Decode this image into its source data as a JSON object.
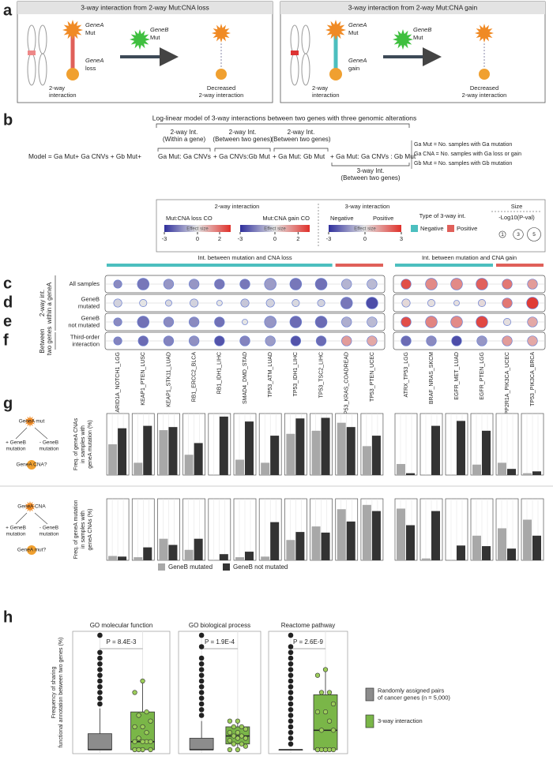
{
  "panel_a": {
    "letter": "a",
    "boxes": [
      {
        "title": "3-way interaction from 2-way Mut:CNA loss",
        "genea": "GeneA",
        "genea_alt": "Mut",
        "geneb": "GeneB",
        "geneb_alt": "Mut",
        "genea_cna": "GeneA",
        "cna": "loss",
        "left_caption": [
          "2-way",
          "interaction"
        ],
        "right_caption": [
          "Decreased",
          "2-way interaction"
        ]
      },
      {
        "title": "3-way interaction from 2-way Mut:CNA gain",
        "genea": "GeneA",
        "genea_alt": "Mut",
        "geneb": "GeneB",
        "geneb_alt": "Mut",
        "genea_cna": "GeneA",
        "cna": "gain",
        "left_caption": [
          "2-way",
          "interaction"
        ],
        "right_caption": [
          "Decreased",
          "2-way interaction"
        ]
      }
    ]
  },
  "panel_b": {
    "letter": "b",
    "title": "Log-linear model of 3-way interactions between two genes with three genomic alterations",
    "brackets": [
      [
        "2-way Int.",
        "(Within a gene)"
      ],
      [
        "2-way Int.",
        "(Between two genes)"
      ],
      [
        "2-way Int.",
        "(Between two genes)"
      ]
    ],
    "formula": [
      "Model = Ga Mut+ Ga CNVs + Gb Mut+",
      "Ga Mut: Ga CNVs",
      "+ Ga CNVs:Gb Mut",
      "+ Ga Mut: Gb Mut",
      "+ Ga Mut: Ga CNVs : Gb Mut"
    ],
    "three_way": [
      "3-way Int.",
      "(Between two genes)"
    ],
    "definitions": [
      "Ga Mut = No. samples with Ga mutation",
      "Ga CNA = No. samples with Ga loss or gain",
      "Gb Mut = No. samples with Gb mutation"
    ]
  },
  "legend": {
    "two_way": {
      "title": "2-way interaction",
      "loss": {
        "label": "Mut:CNA loss CO",
        "bar_label": "Effect size",
        "ticks": [
          -3,
          0,
          2
        ]
      },
      "gain": {
        "label": "Mut:CNA gain CO",
        "bar_label": "Effect size",
        "ticks": [
          -3,
          0,
          2
        ]
      }
    },
    "three_way": {
      "title": "3-way interaction",
      "negative": "Negative",
      "positive": "Positive",
      "bar_label": "Effect size",
      "ticks": [
        -3,
        0,
        3
      ]
    },
    "type": {
      "title": "Type of 3-way int.",
      "items": [
        {
          "label": "Negative",
          "color": "#4cbfbf"
        },
        {
          "label": "Positive",
          "color": "#e0605a"
        }
      ]
    },
    "size": {
      "title": "Size",
      "subtitle": "-Log10(P-val)",
      "values": [
        1,
        3,
        5
      ]
    }
  },
  "chart_data": [
    {
      "type": "dot",
      "colorscale": {
        "min": -3,
        "max": 3,
        "colors": [
          "#2f2f9c",
          "#e4e4e4",
          "#e0302a"
        ]
      },
      "groups": [
        {
          "label": "Int. between mutation and CNA loss",
          "subgroups": [
            {
              "color": "#4cbfbf",
              "categories": [
                "ARID1A_NOTCH1_LGG",
                "KEAP1_PTEN_LUSC",
                "KEAP1_STK11_LUAD",
                "RB1_ERCC2_BLCA",
                "RB1_IDH1_LIHC",
                "SMAD4_DMD_STAD",
                "TP53_ATM_LUAD",
                "TP53_IDH1_LIHC",
                "TP53_TSC2_LIHC"
              ]
            },
            {
              "color": "#e0605a",
              "categories": [
                "TP53_KRAS_COADREAD",
                "TP53_PTEN_UCEC"
              ]
            }
          ]
        },
        {
          "label": "Int. between mutation and CNA gain",
          "subgroups": [
            {
              "color": "#4cbfbf",
              "categories": [
                "ATRX_TP53_LGG",
                "BRAF_NRAS_SKCM",
                "EGFR_MET_LUAD",
                "EGFR_PTEN_LGG"
              ]
            },
            {
              "color": "#e0605a",
              "categories": [
                "PPP2R1A_PIK3CA_UCEC",
                "TP53_PIK3CA_BRCA"
              ]
            }
          ]
        }
      ],
      "row_groups": [
        {
          "label": [
            "2-way int.",
            "within a geneA"
          ],
          "rows": [
            {
              "letter": "c",
              "name": [
                "All samples"
              ],
              "values": [
                -1.5,
                -1.8,
                -1.3,
                -1.3,
                -1.8,
                -1.8,
                -1.2,
                -1.8,
                -1.9,
                -0.8,
                -0.7,
                2.5,
                1.5,
                1.5,
                2.2,
                1.8,
                1.2
              ],
              "sizes": [
                2,
                4,
                3,
                3,
                3,
                3,
                4,
                4,
                4,
                3,
                3,
                3,
                4,
                4,
                4,
                3,
                3
              ]
            },
            {
              "letter": "d",
              "name": [
                "GeneB",
                "mutated"
              ],
              "values": [
                -0.3,
                0,
                -0.2,
                -0.3,
                0,
                -0.5,
                -0.3,
                -0.2,
                -0.3,
                -1.8,
                -2.5,
                0.2,
                0.1,
                0.1,
                0.2,
                1.8,
                2.8
              ],
              "sizes": [
                2,
                1.5,
                1,
                2,
                0.5,
                2,
                2,
                1.5,
                1.5,
                4,
                4,
                2,
                1.5,
                0.5,
                1.5,
                3,
                4
              ]
            },
            {
              "letter": "e",
              "name": [
                "GeneB",
                "not mutated"
              ],
              "values": [
                -1.5,
                -1.9,
                -1.5,
                -1.5,
                -1.9,
                0,
                -1.3,
                -2.0,
                -2.0,
                -0.9,
                -0.7,
                2.5,
                1.6,
                1.5,
                2.6,
                0.1,
                1
              ],
              "sizes": [
                2,
                4,
                3,
                3,
                3,
                0.5,
                4,
                4,
                4,
                3,
                3,
                3,
                4,
                4,
                4,
                1.5,
                3
              ]
            }
          ]
        },
        {
          "label": [
            "Between",
            "two genes"
          ],
          "rows": [
            {
              "letter": "f",
              "name": [
                "Third-order",
                "interaction"
              ],
              "values": [
                -1.6,
                -2,
                -1.6,
                -1.4,
                -2.4,
                -1.6,
                -1.2,
                -2.4,
                -2,
                1.2,
                1.0,
                -2,
                -1.5,
                -2.5,
                -1.3,
                1.2,
                1.0
              ],
              "sizes": [
                2,
                3,
                3,
                3,
                3,
                3,
                3,
                3,
                3,
                3,
                3,
                3,
                3,
                3,
                3,
                3,
                3
              ]
            }
          ]
        }
      ]
    },
    {
      "type": "bar",
      "letter": "g",
      "ylim": [
        0,
        100
      ],
      "series": [
        {
          "name": "GeneB mutated",
          "color": "#a8a8a8"
        },
        {
          "name": "GeneB not mutated",
          "color": "#333333"
        }
      ],
      "panels": [
        {
          "diagram": {
            "top": "GeneA mut",
            "plus": [
              "+ GeneB",
              "mutation"
            ],
            "minus": [
              "- GeneB",
              "mutation"
            ],
            "bottom": "GeneA CNA?"
          },
          "ylabel": [
            "Freq. of geneA CNAs",
            "in samples with",
            "geneA mutation (%)"
          ],
          "values": [
            [
              50,
              20,
              73,
              33,
              0,
              25,
              20,
              67,
              72,
              85,
              47,
              18,
              0,
              0,
              17,
              20,
              3
            ],
            [
              76,
              80,
              78,
              52,
              95,
              87,
              64,
              92,
              93,
              78,
              64,
              3,
              80,
              88,
              72,
              10,
              6
            ]
          ]
        },
        {
          "diagram": {
            "top": "GeneA CNA",
            "plus": [
              "+ GeneB",
              "mutation"
            ],
            "minus": [
              "- GeneB",
              "mutation"
            ],
            "bottom": "GeneA mut?"
          },
          "ylabel": [
            "Freq. of geneA mutation",
            "in samples with",
            "geneA CNAs (%)"
          ],
          "values": [
            [
              7,
              5,
              35,
              17,
              0,
              5,
              6,
              33,
              55,
              83,
              90,
              84,
              3,
              0,
              40,
              52,
              66
            ],
            [
              6,
              21,
              25,
              35,
              10,
              14,
              62,
              46,
              45,
              63,
              80,
              57,
              80,
              24,
              23,
              19,
              40
            ]
          ]
        }
      ]
    },
    {
      "type": "box",
      "letter": "h",
      "ylim": [
        0,
        100
      ],
      "ylabel": [
        "Frequency of sharing",
        "functional annotation between two genes (%)"
      ],
      "series": [
        {
          "name": [
            "Randomly assigned pairs",
            "of cancer genes (n = 5,000)"
          ],
          "color": "#8c8c8c"
        },
        {
          "name": [
            "3-way interaction"
          ],
          "color": "#7ab648"
        }
      ],
      "facets": [
        {
          "title": "GO molecular function",
          "p_label": "P = 8.4E-3",
          "boxes": [
            {
              "whisker_low": 0,
              "q1": 0,
              "median": 0,
              "q3": 14,
              "whisker_high": 36,
              "points": [
                40,
                45,
                50,
                55,
                60,
                65,
                70,
                75,
                80,
                85,
                100
              ]
            },
            {
              "whisker_low": 0,
              "q1": 0,
              "median": 7,
              "q3": 33,
              "whisker_high": 60,
              "points": [
                0,
                0,
                0,
                0,
                7,
                7,
                7,
                7,
                10,
                15,
                20,
                20,
                25,
                30,
                33,
                50,
                60
              ]
            }
          ]
        },
        {
          "title": "GO biological process",
          "p_label": "P = 1.9E-4",
          "boxes": [
            {
              "whisker_low": 0,
              "q1": 0,
              "median": 0,
              "q3": 10,
              "whisker_high": 25,
              "points": [
                30,
                35,
                40,
                45,
                50,
                55,
                60,
                65,
                70,
                75,
                80,
                90,
                100
              ]
            },
            {
              "whisker_low": 0,
              "q1": 5,
              "median": 12,
              "q3": 20,
              "whisker_high": 25,
              "points": [
                0,
                0,
                3,
                5,
                5,
                8,
                10,
                10,
                12,
                12,
                15,
                15,
                18,
                20,
                20,
                25,
                25
              ]
            }
          ]
        },
        {
          "title": "Reactome pathway",
          "p_label": "P = 2.6E-9",
          "boxes": [
            {
              "whisker_low": 0,
              "q1": 0,
              "median": 0,
              "q3": 0,
              "whisker_high": 0,
              "points": [
                5,
                10,
                15,
                20,
                25,
                30,
                35,
                40,
                45,
                50,
                55,
                60,
                65,
                70,
                75,
                80,
                85,
                90,
                100
              ]
            },
            {
              "whisker_low": 0,
              "q1": 0,
              "median": 17,
              "q3": 48,
              "whisker_high": 70,
              "points": [
                0,
                0,
                0,
                0,
                0,
                0,
                0,
                17,
                17,
                25,
                33,
                33,
                40,
                50,
                50,
                65,
                70
              ]
            }
          ]
        }
      ]
    }
  ]
}
